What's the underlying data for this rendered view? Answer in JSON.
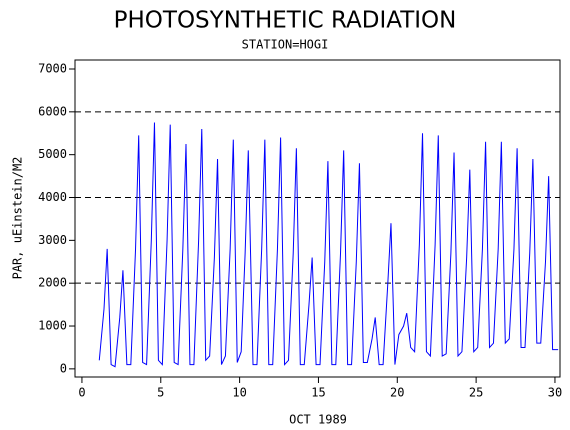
{
  "chart_data": {
    "type": "line",
    "title": "PHOTOSYNTHETIC RADIATION",
    "subtitle": "STATION=HOGI",
    "xlabel": "OCT 1989",
    "ylabel": "PAR, uEinstein/M2",
    "xlim": [
      -0.44,
      30.32
    ],
    "ylim": [
      -190,
      7210
    ],
    "xticks": [
      0,
      5,
      10,
      15,
      20,
      25,
      30
    ],
    "yticks": [
      0,
      1000,
      2000,
      3000,
      4000,
      5000,
      6000,
      7000
    ],
    "reflines": [
      2000,
      4000,
      6000
    ],
    "series": [
      {
        "color": "#0000ff",
        "x": [
          1.1,
          1.4,
          1.6,
          1.85,
          2.1,
          2.4,
          2.6,
          2.85,
          3.1,
          3.4,
          3.6,
          3.85,
          4.1,
          4.4,
          4.6,
          4.85,
          5.1,
          5.4,
          5.6,
          5.85,
          6.1,
          6.4,
          6.6,
          6.85,
          7.1,
          7.4,
          7.6,
          7.85,
          8.1,
          8.4,
          8.6,
          8.85,
          9.1,
          9.4,
          9.6,
          9.85,
          10.1,
          10.35,
          10.55,
          10.85,
          11.1,
          11.4,
          11.6,
          11.85,
          12.1,
          12.4,
          12.6,
          12.85,
          13.1,
          13.4,
          13.6,
          13.85,
          14.1,
          14.4,
          14.6,
          14.85,
          15.1,
          15.4,
          15.6,
          15.85,
          16.1,
          16.4,
          16.6,
          16.85,
          17.1,
          17.4,
          17.6,
          17.85,
          18.1,
          18.4,
          18.6,
          18.85,
          19.1,
          19.4,
          19.6,
          19.85,
          20.1,
          20.4,
          20.6,
          20.85,
          21.1,
          21.4,
          21.6,
          21.85,
          22.1,
          22.4,
          22.6,
          22.85,
          23.1,
          23.4,
          23.6,
          23.85,
          24.1,
          24.4,
          24.6,
          24.85,
          25.1,
          25.4,
          25.6,
          25.85,
          26.1,
          26.4,
          26.6,
          26.85,
          27.1,
          27.4,
          27.6,
          27.85,
          28.1,
          28.4,
          28.6,
          28.85,
          29.1,
          29.4,
          29.6,
          29.85,
          30.2
        ],
        "values": [
          200,
          1400,
          2800,
          100,
          50,
          1200,
          2300,
          100,
          100,
          2800,
          5450,
          150,
          100,
          3000,
          5750,
          200,
          100,
          3000,
          5700,
          150,
          100,
          2800,
          5250,
          100,
          100,
          3000,
          5600,
          200,
          300,
          2600,
          4900,
          100,
          300,
          2800,
          5350,
          150,
          400,
          2700,
          5100,
          100,
          100,
          2800,
          5350,
          100,
          100,
          2800,
          5400,
          100,
          200,
          2700,
          5150,
          100,
          100,
          1500,
          2600,
          100,
          100,
          2500,
          4850,
          100,
          100,
          2700,
          5100,
          100,
          100,
          2500,
          4800,
          150,
          150,
          700,
          1200,
          100,
          100,
          2000,
          3400,
          100,
          800,
          1000,
          1300,
          500,
          400,
          2900,
          5500,
          400,
          300,
          2900,
          5450,
          300,
          350,
          2700,
          5050,
          300,
          400,
          2600,
          4650,
          400,
          500,
          2800,
          5300,
          500,
          600,
          2800,
          5300,
          600,
          700,
          2800,
          5150,
          500,
          500,
          2700,
          4900,
          600,
          600,
          2500,
          4500,
          450,
          450
        ]
      }
    ]
  }
}
